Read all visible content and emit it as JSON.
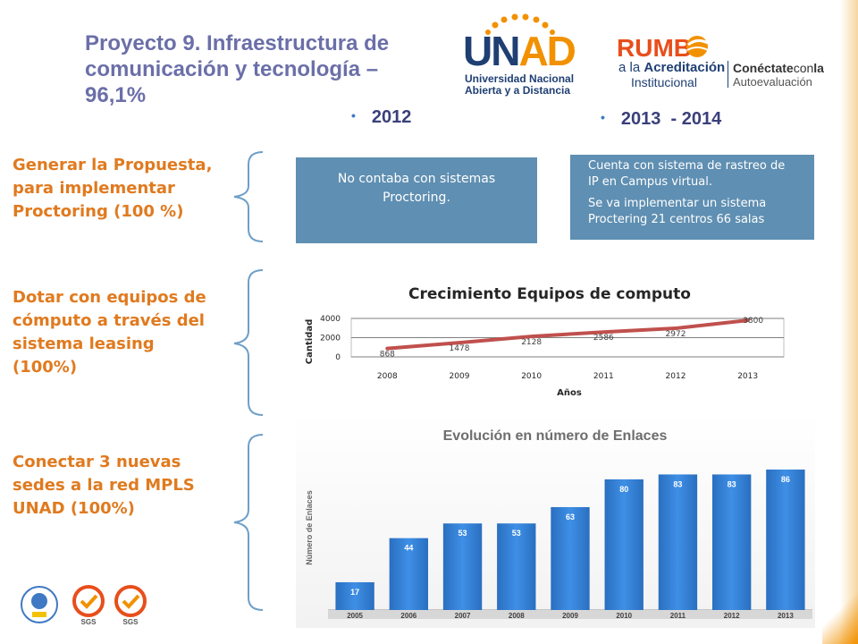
{
  "slide": {
    "title": "Proyecto 9. Infraestructura de comunicación y tecnología – 96,1%",
    "title_lines": [
      "Proyecto 9. Infraestructura de",
      "comunicación y tecnología –",
      "96,1%"
    ]
  },
  "logos": {
    "unad": {
      "wordmark": "UNAD",
      "line1": "Universidad Nacional",
      "line2": "Abierta y a Distancia"
    },
    "rumbo": {
      "wordmark": "RUMB",
      "line1_prefix": "a la",
      "line1_bold": "Acreditación",
      "line2": "Institucional",
      "right_bold": "Conéctate",
      "right_light": "con",
      "right_bold2": "la",
      "right_line2": "Autoevaluación"
    },
    "footer": [
      "sgs-icon",
      "sgs-icon"
    ],
    "footer_labels": [
      "SGS",
      "SGS"
    ]
  },
  "columns": {
    "year_a": "2012",
    "year_b": "2013  - 2014"
  },
  "objectives": [
    "Generar la Propuesta, para implementar Proctoring (100 %)",
    "Dotar con equipos de cómputo a través del sistema leasing (100%)",
    "Conectar 3 nuevas sedes a la red MPLS UNAD (100%)"
  ],
  "objective_lines": [
    [
      "Generar la Propuesta,",
      "para implementar",
      "Proctoring (100 %)"
    ],
    [
      "Dotar con equipos de",
      "cómputo a través del",
      "sistema leasing",
      "(100%)"
    ],
    [
      "Conectar 3 nuevas",
      "sedes a la red MPLS",
      "UNAD (100%)"
    ]
  ],
  "boxes": {
    "box_2012": [
      "No contaba con sistemas",
      "Proctoring."
    ],
    "box_2013_p1": [
      "Cuenta con sistema de rastreo de",
      "IP en Campus virtual."
    ],
    "box_2013_p2": [
      "Se va implementar  un sistema",
      "Proctering 21 centros 66 salas"
    ]
  },
  "colors": {
    "title": "#6b6fa8",
    "orange": "#e07a1f",
    "box_blue": "#5f8fb2",
    "line_red": "#c0504d",
    "bar_blue": "#2f7fd4"
  },
  "chart_data": [
    {
      "type": "line",
      "title": "Crecimiento Equipos de computo",
      "xlabel": "Años",
      "ylabel": "Cantidad",
      "x": [
        "2008",
        "2009",
        "2010",
        "2011",
        "2012",
        "2013"
      ],
      "yticks": [
        "0",
        "2000",
        "4000"
      ],
      "series": [
        {
          "values": [
            868,
            1478,
            2128,
            2586,
            2972,
            3800
          ]
        }
      ],
      "ylim": [
        0,
        4000
      ],
      "grid": true
    },
    {
      "type": "bar",
      "title": "Evolución en número de Enlaces",
      "ylabel": "Número de Enlaces",
      "categories": [
        "2005",
        "2006",
        "2007",
        "2008",
        "2009",
        "2010",
        "2011",
        "2012",
        "2013"
      ],
      "values": [
        17,
        44,
        53,
        53,
        63,
        80,
        83,
        83,
        86
      ],
      "ylim": [
        0,
        92
      ]
    }
  ]
}
